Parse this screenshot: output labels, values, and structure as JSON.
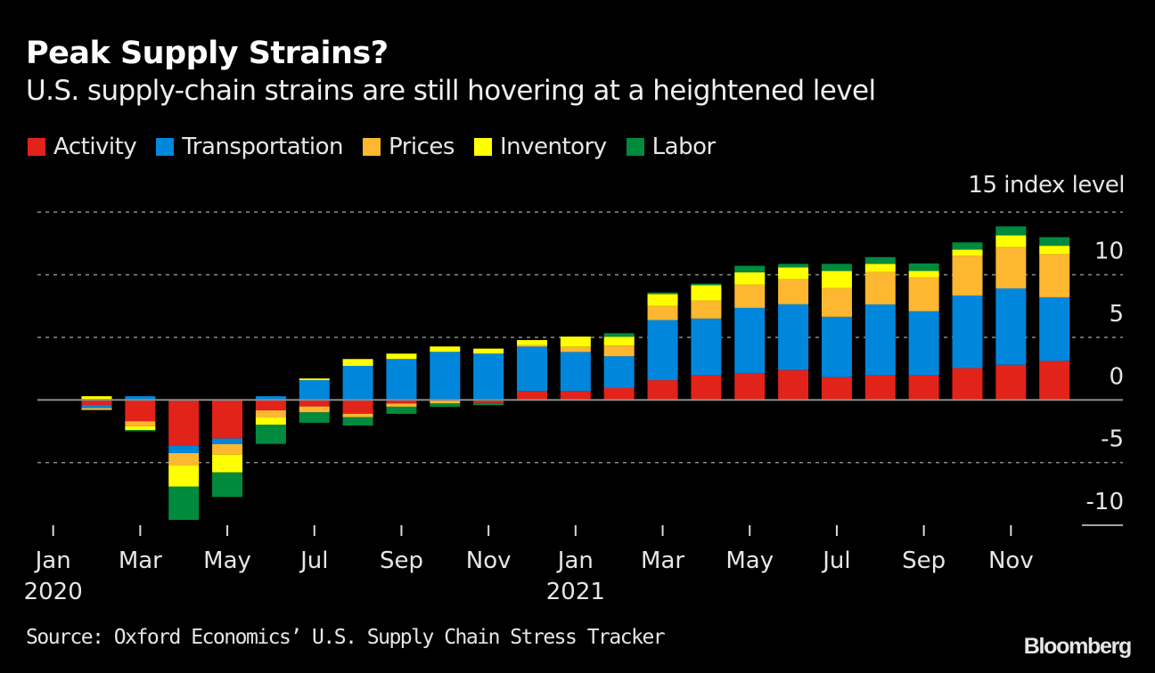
{
  "header": {
    "title": "Peak Supply Strains?",
    "subtitle": "U.S. supply-chain strains are still hovering at a heightened level"
  },
  "footer": {
    "source": "Source: Oxford Economics’ U.S. Supply Chain Stress Tracker",
    "logo": "Bloomberg"
  },
  "chart_data": {
    "type": "bar",
    "stacked": true,
    "title": "Peak Supply Strains?",
    "subtitle": "U.S. supply-chain strains are still hovering at a heightened level",
    "ylabel": "index level",
    "unit_label": "15 index level",
    "ylim": [
      -10,
      15
    ],
    "yticks": [
      15,
      10,
      5,
      0,
      -5,
      -10
    ],
    "ytick_labels": [
      "15 index level",
      "10",
      "5",
      "0",
      "-5",
      "-10"
    ],
    "grid": true,
    "legend_position": "top-left",
    "categories": [
      "Jan 2020",
      "Feb 2020",
      "Mar 2020",
      "Apr 2020",
      "May 2020",
      "Jun 2020",
      "Jul 2020",
      "Aug 2020",
      "Sep 2020",
      "Oct 2020",
      "Nov 2020",
      "Dec 2020",
      "Jan 2021",
      "Feb 2021",
      "Mar 2021",
      "Apr 2021",
      "May 2021",
      "Jun 2021",
      "Jul 2021",
      "Aug 2021",
      "Sep 2021",
      "Oct 2021",
      "Nov 2021"
    ],
    "xticks": [
      {
        "index": 0,
        "label": "Jan",
        "sublabel": "2020"
      },
      {
        "index": 2,
        "label": "Mar",
        "sublabel": ""
      },
      {
        "index": 4,
        "label": "May",
        "sublabel": ""
      },
      {
        "index": 6,
        "label": "Jul",
        "sublabel": ""
      },
      {
        "index": 8,
        "label": "Sep",
        "sublabel": ""
      },
      {
        "index": 10,
        "label": "Nov",
        "sublabel": ""
      },
      {
        "index": 12,
        "label": "Jan",
        "sublabel": "2021"
      },
      {
        "index": 14,
        "label": "Mar",
        "sublabel": ""
      },
      {
        "index": 16,
        "label": "May",
        "sublabel": ""
      },
      {
        "index": 18,
        "label": "Jul",
        "sublabel": ""
      },
      {
        "index": 20,
        "label": "Sep",
        "sublabel": ""
      },
      {
        "index": 22,
        "label": "Nov",
        "sublabel": ""
      }
    ],
    "series": [
      {
        "name": "Activity",
        "color": "#e2231a",
        "values": [
          -0.4,
          -1.7,
          -3.67,
          -3.08,
          -0.83,
          -0.52,
          -1.1,
          -0.28,
          0,
          -0.24,
          0.71,
          0.71,
          0.95,
          1.58,
          1.96,
          2.13,
          2.39,
          1.82,
          1.96,
          1.96,
          2.55,
          2.81,
          3.12
        ]
      },
      {
        "name": "Transportation",
        "color": "#0087dc",
        "values": [
          -0.25,
          0.3,
          -0.57,
          -0.45,
          0.3,
          1.58,
          2.72,
          3.27,
          3.84,
          3.7,
          3.55,
          3.12,
          2.54,
          4.8,
          4.54,
          5.22,
          5.25,
          4.82,
          5.67,
          5.13,
          5.79,
          6.1,
          5.08
        ]
      },
      {
        "name": "Prices",
        "color": "#fdb730",
        "values": [
          -0.15,
          -0.4,
          -0.97,
          -0.83,
          -0.57,
          -0.47,
          -0.28,
          -0.26,
          -0.28,
          0,
          0.12,
          0.43,
          0.85,
          1.13,
          1.44,
          1.87,
          2.0,
          2.29,
          2.58,
          2.7,
          3.17,
          3.29,
          3.45
        ]
      },
      {
        "name": "Inventory",
        "color": "#ffff00",
        "values": [
          0.3,
          -0.3,
          -1.7,
          -1.42,
          -0.57,
          0.14,
          0.55,
          0.43,
          0.43,
          0.4,
          0.4,
          0.8,
          0.71,
          0.95,
          1.23,
          0.97,
          0.95,
          1.37,
          0.66,
          0.52,
          0.5,
          0.95,
          0.66
        ]
      },
      {
        "name": "Labor",
        "color": "#008a3e",
        "values": [
          0,
          -0.1,
          -2.67,
          -1.96,
          -1.54,
          -0.83,
          -0.66,
          -0.57,
          -0.26,
          -0.17,
          0,
          0,
          0.28,
          0.12,
          0.12,
          0.52,
          0.28,
          0.57,
          0.54,
          0.59,
          0.57,
          0.71,
          0.69
        ]
      }
    ]
  }
}
